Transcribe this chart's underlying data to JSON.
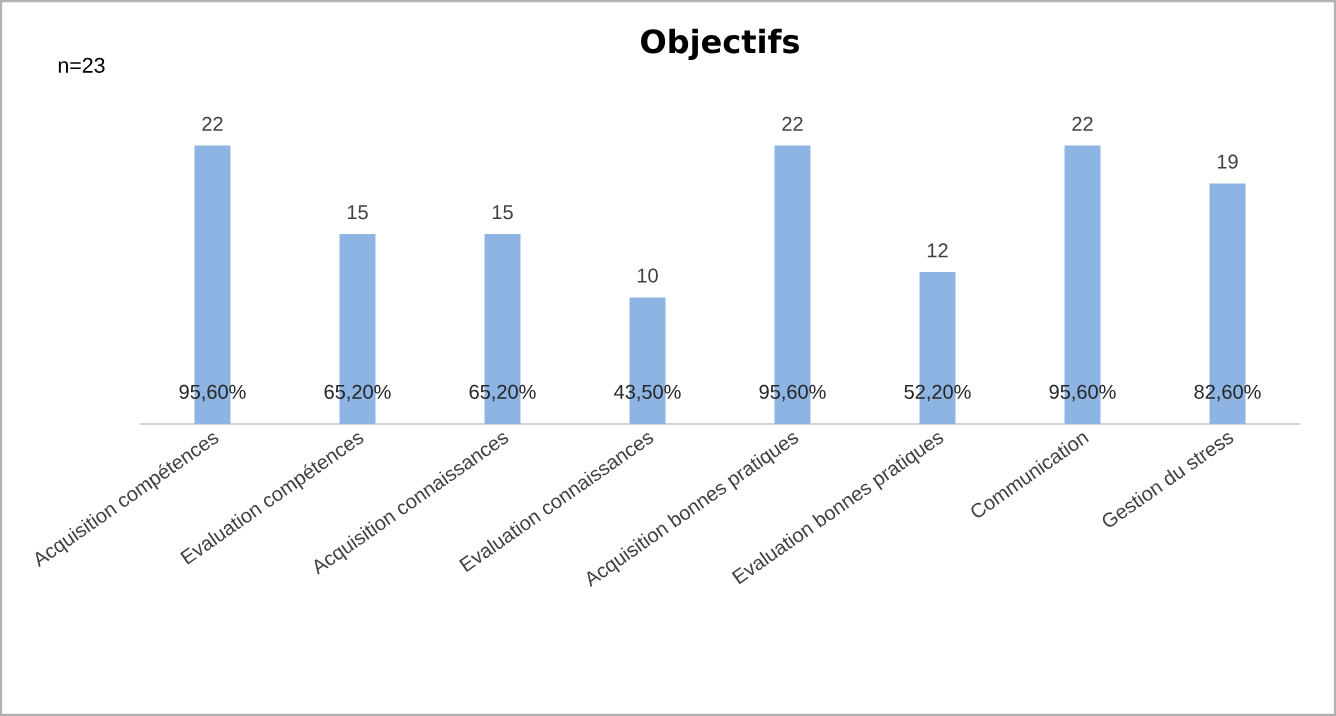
{
  "chart_data": {
    "type": "bar",
    "title": "Objectifs",
    "categories": [
      "Acquisition compétences",
      "Evaluation compétences",
      "Acquisition connaissances",
      "Evaluation connaissances",
      "Acquisition bonnes pratiques",
      "Evaluation bonnes pratiques",
      "Communication",
      "Gestion du stress"
    ],
    "values": [
      22,
      15,
      15,
      10,
      22,
      12,
      22,
      19
    ],
    "color": "#8db4e2",
    "data_labels": true,
    "tick_labels": "x",
    "annotations": [
      "n=23",
      "95,60%",
      "65,20%",
      "65,20%",
      "43,50%",
      "95,60%",
      "52,20%",
      "95,60%",
      "82,60%"
    ]
  }
}
